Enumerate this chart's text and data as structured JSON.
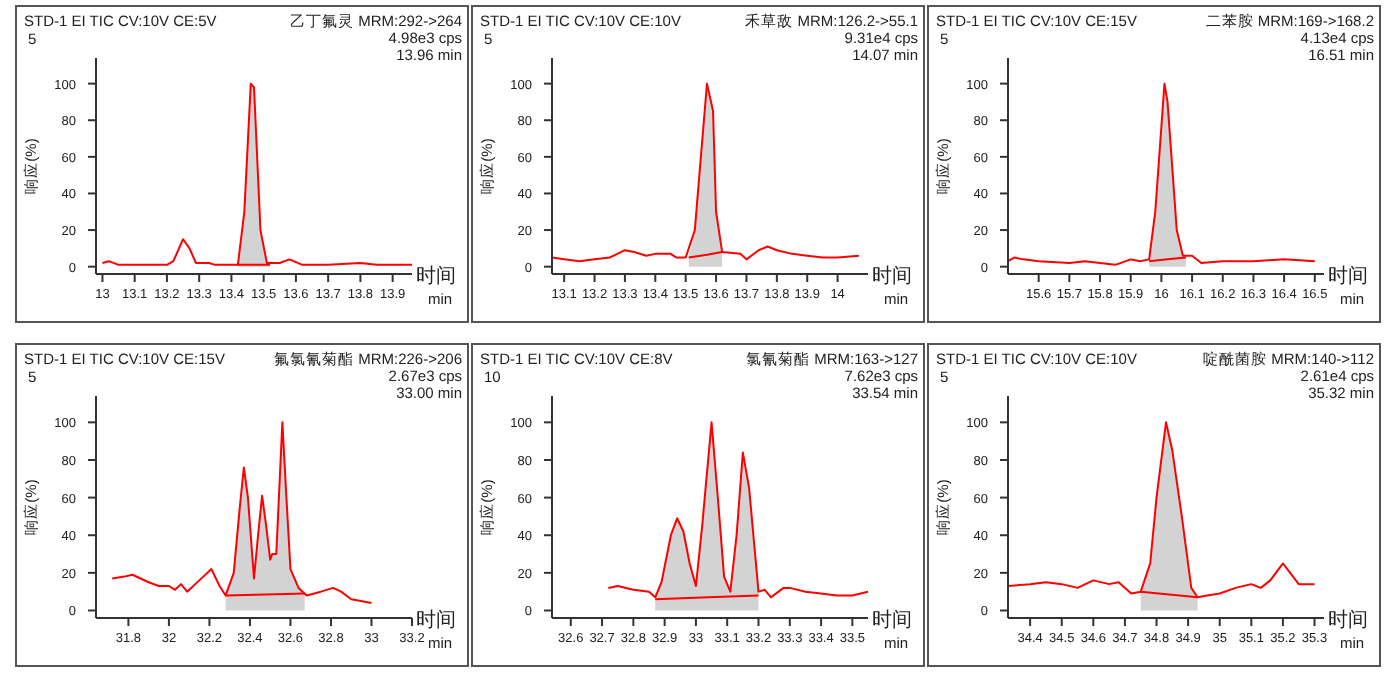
{
  "chart_data": [
    {
      "type": "line",
      "title": "STD-1 EI TIC CV:10V CE:5V",
      "xlabel": "时间",
      "ylabel": "响应(%)",
      "annotations": [
        "5",
        "乙丁氟灵 MRM:292->264",
        "4.98e3 cps",
        "13.96 min",
        "min"
      ],
      "xlim": [
        12.98,
        13.96
      ],
      "ylim": [
        -4,
        114
      ],
      "xticks": [
        13,
        13.1,
        13.2,
        13.3,
        13.4,
        13.5,
        13.6,
        13.7,
        13.8,
        13.9
      ],
      "yticks": [
        0,
        20,
        40,
        60,
        80,
        100
      ],
      "series": [
        {
          "type": "area",
          "color": "#d3d3d3",
          "x": [
            13.42,
            13.44,
            13.46,
            13.47,
            13.49,
            13.51,
            13.52
          ],
          "values": [
            1,
            30,
            100,
            98,
            20,
            2,
            2
          ]
        },
        {
          "type": "line",
          "color": "#ff0000",
          "x": [
            13.0,
            13.02,
            13.05,
            13.1,
            13.2,
            13.22,
            13.25,
            13.27,
            13.29,
            13.33,
            13.35,
            13.42,
            13.44,
            13.46,
            13.47,
            13.49,
            13.51,
            13.55,
            13.58,
            13.62,
            13.7,
            13.8,
            13.85,
            13.96
          ],
          "values": [
            2,
            3,
            1,
            1,
            1,
            3,
            15,
            10,
            2,
            2,
            1,
            1,
            30,
            100,
            98,
            20,
            2,
            2,
            4,
            1,
            1,
            2,
            1,
            1
          ]
        },
        {
          "type": "line",
          "color": "#ff0000",
          "x": [
            13.42,
            13.47,
            13.52
          ],
          "values": [
            1,
            1,
            1
          ]
        }
      ]
    },
    {
      "type": "line",
      "title": "STD-1 EI TIC CV:10V CE:10V",
      "xlabel": "时间",
      "ylabel": "响应(%)",
      "annotations": [
        "5",
        "禾草敌 MRM:126.2->55.1",
        "9.31e4 cps",
        "14.07 min",
        "min"
      ],
      "xlim": [
        13.06,
        14.1
      ],
      "ylim": [
        -4,
        114
      ],
      "xticks": [
        13.1,
        13.2,
        13.3,
        13.4,
        13.5,
        13.6,
        13.7,
        13.8,
        13.9,
        14
      ],
      "yticks": [
        0,
        20,
        40,
        60,
        80,
        100
      ],
      "series": [
        {
          "type": "area",
          "color": "#d3d3d3",
          "x": [
            13.51,
            13.53,
            13.57,
            13.59,
            13.6,
            13.62
          ],
          "values": [
            5,
            20,
            100,
            85,
            30,
            8
          ]
        },
        {
          "type": "line",
          "color": "#ff0000",
          "x": [
            13.06,
            13.1,
            13.15,
            13.2,
            13.25,
            13.3,
            13.33,
            13.37,
            13.4,
            13.45,
            13.47,
            13.5,
            13.53,
            13.57,
            13.59,
            13.6,
            13.62,
            13.68,
            13.7,
            13.74,
            13.77,
            13.8,
            13.85,
            13.9,
            13.95,
            14.0,
            14.07
          ],
          "values": [
            5,
            4,
            3,
            4,
            5,
            9,
            8,
            6,
            7,
            7,
            5,
            5,
            20,
            100,
            85,
            30,
            8,
            7,
            4,
            9,
            11,
            9,
            7,
            6,
            5,
            5,
            6
          ]
        },
        {
          "type": "line",
          "color": "#ff0000",
          "x": [
            13.51,
            13.57,
            13.62
          ],
          "values": [
            5,
            6.5,
            8
          ]
        }
      ]
    },
    {
      "type": "line",
      "title": "STD-1 EI TIC CV:10V CE:15V",
      "xlabel": "时间",
      "ylabel": "响应(%)",
      "annotations": [
        "5",
        "二苯胺 MRM:169->168.2",
        "4.13e4 cps",
        "16.51 min",
        "min"
      ],
      "xlim": [
        15.5,
        16.53
      ],
      "ylim": [
        -4,
        114
      ],
      "xticks": [
        15.6,
        15.7,
        15.8,
        15.9,
        16,
        16.1,
        16.2,
        16.3,
        16.4,
        16.5
      ],
      "yticks": [
        0,
        20,
        40,
        60,
        80,
        100
      ],
      "series": [
        {
          "type": "area",
          "color": "#d3d3d3",
          "x": [
            15.96,
            15.98,
            16.01,
            16.02,
            16.05,
            16.07,
            16.08
          ],
          "values": [
            4,
            30,
            100,
            90,
            20,
            6,
            5
          ]
        },
        {
          "type": "line",
          "color": "#ff0000",
          "x": [
            15.5,
            15.52,
            15.55,
            15.6,
            15.7,
            15.75,
            15.8,
            15.85,
            15.9,
            15.93,
            15.96,
            15.98,
            16.01,
            16.02,
            16.05,
            16.07,
            16.1,
            16.13,
            16.2,
            16.3,
            16.4,
            16.5
          ],
          "values": [
            3,
            5,
            4,
            3,
            2,
            3,
            2,
            1,
            4,
            3,
            4,
            30,
            100,
            90,
            20,
            6,
            6,
            2,
            3,
            3,
            4,
            3
          ]
        },
        {
          "type": "line",
          "color": "#ff0000",
          "x": [
            15.96,
            16.02,
            16.08
          ],
          "values": [
            3,
            4,
            5
          ]
        }
      ]
    },
    {
      "type": "line",
      "title": "STD-1 EI TIC CV:10V CE:15V",
      "xlabel": "时间",
      "ylabel": "响应(%)",
      "annotations": [
        "5",
        "氟氯氰菊酯 MRM:226->206",
        "2.67e3 cps",
        "33.00 min",
        "min"
      ],
      "xlim": [
        31.64,
        33.2
      ],
      "ylim": [
        -4,
        114
      ],
      "xticks": [
        31.8,
        32,
        32.2,
        32.4,
        32.6,
        32.8,
        33,
        33.2
      ],
      "yticks": [
        0,
        20,
        40,
        60,
        80,
        100
      ],
      "series": [
        {
          "type": "area",
          "color": "#d3d3d3",
          "x": [
            32.28,
            32.32,
            32.35,
            32.37,
            32.39,
            32.42,
            32.44,
            32.46,
            32.48,
            32.5,
            32.51,
            32.53,
            32.56,
            32.58,
            32.6,
            32.64,
            32.67
          ],
          "values": [
            8,
            20,
            55,
            76,
            60,
            17,
            40,
            61,
            45,
            27,
            30,
            30,
            100,
            60,
            22,
            12,
            9
          ]
        },
        {
          "type": "line",
          "color": "#ff0000",
          "x": [
            31.72,
            31.78,
            31.82,
            31.9,
            31.95,
            32.0,
            32.03,
            32.06,
            32.09,
            32.15,
            32.21,
            32.25,
            32.28,
            32.32,
            32.35,
            32.37,
            32.39,
            32.42,
            32.44,
            32.46,
            32.48,
            32.5,
            32.51,
            32.53,
            32.56,
            32.58,
            32.6,
            32.64,
            32.68,
            32.75,
            32.81,
            32.85,
            32.9,
            33.0
          ],
          "values": [
            17,
            18,
            19,
            15,
            13,
            13,
            11,
            14,
            10,
            16,
            22,
            13,
            8,
            20,
            55,
            76,
            60,
            17,
            40,
            61,
            45,
            27,
            30,
            30,
            100,
            60,
            22,
            12,
            8,
            10,
            12,
            10,
            6,
            4
          ]
        },
        {
          "type": "line",
          "color": "#ff0000",
          "x": [
            32.28,
            32.48,
            32.67
          ],
          "values": [
            8,
            8.5,
            9
          ]
        }
      ]
    },
    {
      "type": "line",
      "title": "STD-1 EI TIC CV:10V CE:8V",
      "xlabel": "时间",
      "ylabel": "响应(%)",
      "annotations": [
        "10",
        "氯氰菊酯 MRM:163->127",
        "7.62e3 cps",
        "33.54 min",
        "min"
      ],
      "xlim": [
        32.54,
        33.55
      ],
      "ylim": [
        -4,
        114
      ],
      "xticks": [
        32.6,
        32.7,
        32.8,
        32.9,
        33,
        33.1,
        33.2,
        33.3,
        33.4,
        33.5
      ],
      "yticks": [
        0,
        20,
        40,
        60,
        80,
        100
      ],
      "series": [
        {
          "type": "area",
          "color": "#d3d3d3",
          "x": [
            32.87,
            32.89,
            32.92,
            32.94,
            32.96,
            32.98,
            33.0,
            33.02,
            33.05,
            33.07,
            33.09,
            33.11,
            33.13,
            33.15,
            33.17,
            33.2
          ],
          "values": [
            7,
            15,
            40,
            49,
            42,
            25,
            13,
            45,
            100,
            60,
            18,
            10,
            40,
            84,
            65,
            10
          ]
        },
        {
          "type": "line",
          "color": "#ff0000",
          "x": [
            32.72,
            32.75,
            32.8,
            32.85,
            32.87,
            32.89,
            32.92,
            32.94,
            32.96,
            32.98,
            33.0,
            33.02,
            33.05,
            33.07,
            33.09,
            33.11,
            33.13,
            33.15,
            33.17,
            33.2,
            33.22,
            33.24,
            33.28,
            33.3,
            33.35,
            33.4,
            33.45,
            33.5,
            33.55
          ],
          "values": [
            12,
            13,
            11,
            10,
            7,
            15,
            40,
            49,
            42,
            25,
            13,
            45,
            100,
            60,
            18,
            10,
            40,
            84,
            65,
            10,
            11,
            7,
            12,
            12,
            10,
            9,
            8,
            8,
            10
          ]
        },
        {
          "type": "line",
          "color": "#ff0000",
          "x": [
            32.87,
            33.04,
            33.2
          ],
          "values": [
            6,
            7,
            8
          ]
        }
      ]
    },
    {
      "type": "line",
      "title": "STD-1 EI TIC CV:10V CE:10V",
      "xlabel": "时间",
      "ylabel": "响应(%)",
      "annotations": [
        "5",
        "啶酰菌胺 MRM:140->112",
        "2.61e4 cps",
        "35.32 min",
        "min"
      ],
      "xlim": [
        34.33,
        35.33
      ],
      "ylim": [
        -4,
        114
      ],
      "xticks": [
        34.4,
        34.5,
        34.6,
        34.7,
        34.8,
        34.9,
        35,
        35.1,
        35.2,
        35.3
      ],
      "yticks": [
        0,
        20,
        40,
        60,
        80,
        100
      ],
      "series": [
        {
          "type": "area",
          "color": "#d3d3d3",
          "x": [
            34.75,
            34.78,
            34.8,
            34.83,
            34.85,
            34.88,
            34.91,
            34.93
          ],
          "values": [
            10,
            25,
            60,
            100,
            85,
            50,
            12,
            7
          ]
        },
        {
          "type": "line",
          "color": "#ff0000",
          "x": [
            34.33,
            34.4,
            34.45,
            34.5,
            34.55,
            34.6,
            34.65,
            34.68,
            34.72,
            34.75,
            34.78,
            34.8,
            34.83,
            34.85,
            34.88,
            34.91,
            34.93,
            34.96,
            35.0,
            35.05,
            35.1,
            35.13,
            35.16,
            35.2,
            35.25,
            35.3
          ],
          "values": [
            13,
            14,
            15,
            14,
            12,
            16,
            14,
            15,
            9,
            10,
            25,
            60,
            100,
            85,
            50,
            12,
            7,
            8,
            9,
            12,
            14,
            12,
            16,
            25,
            14,
            14
          ]
        },
        {
          "type": "line",
          "color": "#ff0000",
          "x": [
            34.75,
            34.84,
            34.93
          ],
          "values": [
            10,
            8.5,
            7
          ]
        }
      ]
    }
  ]
}
